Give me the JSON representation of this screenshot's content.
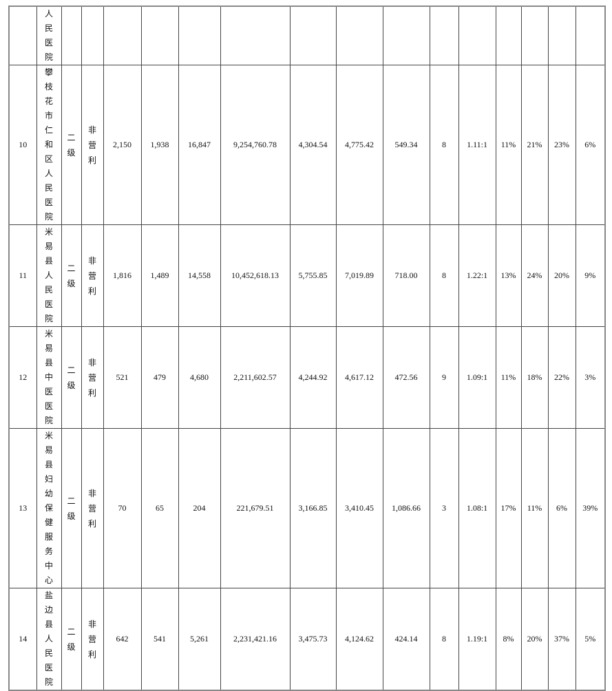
{
  "continuation_row": {
    "name": "人民医院"
  },
  "rows": [
    {
      "no": "10",
      "name": "攀枝花市仁和区人民医院",
      "level": "二级",
      "type": "非营利",
      "c1": "2,150",
      "c2": "1,938",
      "c3": "16,847",
      "c4": "9,254,760.78",
      "c5": "4,304.54",
      "c6": "4,775.42",
      "c7": "549.34",
      "c8": "8",
      "c9": "1.11:1",
      "c10": "11%",
      "c11": "21%",
      "c12": "23%",
      "c13": "6%"
    },
    {
      "no": "11",
      "name": "米易县人民医院",
      "level": "二级",
      "type": "非营利",
      "c1": "1,816",
      "c2": "1,489",
      "c3": "14,558",
      "c4": "10,452,618.13",
      "c5": "5,755.85",
      "c6": "7,019.89",
      "c7": "718.00",
      "c8": "8",
      "c9": "1.22:1",
      "c10": "13%",
      "c11": "24%",
      "c12": "20%",
      "c13": "9%"
    },
    {
      "no": "12",
      "name": "米易县中医医院",
      "level": "二级",
      "type": "非营利",
      "c1": "521",
      "c2": "479",
      "c3": "4,680",
      "c4": "2,211,602.57",
      "c5": "4,244.92",
      "c6": "4,617.12",
      "c7": "472.56",
      "c8": "9",
      "c9": "1.09:1",
      "c10": "11%",
      "c11": "18%",
      "c12": "22%",
      "c13": "3%"
    },
    {
      "no": "13",
      "name": "米易县妇幼保健服务中心",
      "level": "二级",
      "type": "非营利",
      "c1": "70",
      "c2": "65",
      "c3": "204",
      "c4": "221,679.51",
      "c5": "3,166.85",
      "c6": "3,410.45",
      "c7": "1,086.66",
      "c8": "3",
      "c9": "1.08:1",
      "c10": "17%",
      "c11": "11%",
      "c12": "6%",
      "c13": "39%"
    },
    {
      "no": "14",
      "name": "盐边县人民医院",
      "level": "二级",
      "type": "非营利",
      "c1": "642",
      "c2": "541",
      "c3": "5,261",
      "c4": "2,231,421.16",
      "c5": "3,475.73",
      "c6": "4,124.62",
      "c7": "424.14",
      "c8": "8",
      "c9": "1.19:1",
      "c10": "8%",
      "c11": "20%",
      "c12": "37%",
      "c13": "5%"
    }
  ]
}
